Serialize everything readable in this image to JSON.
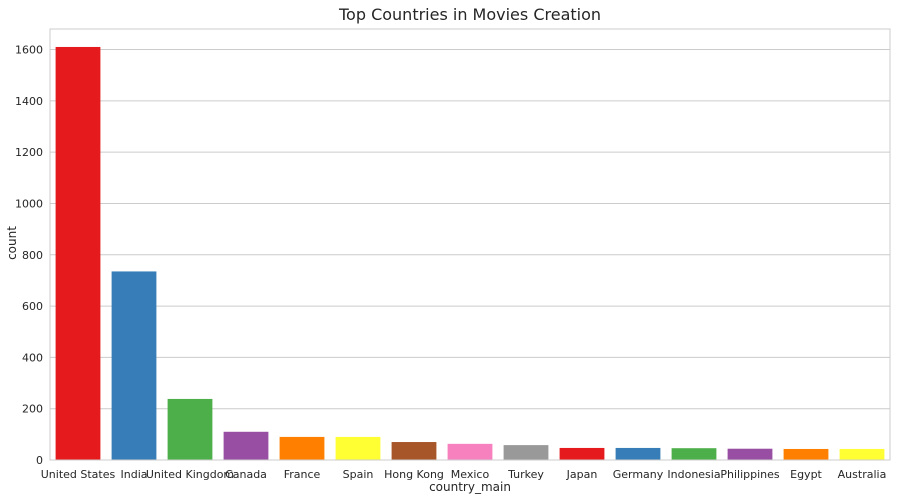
{
  "chart_data": {
    "type": "bar",
    "title": "Top Countries in Movies Creation",
    "xlabel": "country_main",
    "ylabel": "count",
    "ylim": [
      0,
      1680
    ],
    "yticks": [
      0,
      200,
      400,
      600,
      800,
      1000,
      1200,
      1400,
      1600
    ],
    "grid": true,
    "categories": [
      "United States",
      "India",
      "United Kingdom",
      "Canada",
      "France",
      "Spain",
      "Hong Kong",
      "Mexico",
      "Turkey",
      "Japan",
      "Germany",
      "Indonesia",
      "Philippines",
      "Egypt",
      "Australia"
    ],
    "values": [
      1610,
      735,
      238,
      110,
      90,
      90,
      70,
      63,
      58,
      47,
      47,
      46,
      44,
      43,
      43
    ],
    "colors": [
      "#e41a1c",
      "#377eb8",
      "#4daf4a",
      "#984ea3",
      "#ff7f00",
      "#ffff33",
      "#a65628",
      "#f781bf",
      "#999999",
      "#e41a1c",
      "#377eb8",
      "#4daf4a",
      "#984ea3",
      "#ff7f00",
      "#ffff33"
    ]
  }
}
